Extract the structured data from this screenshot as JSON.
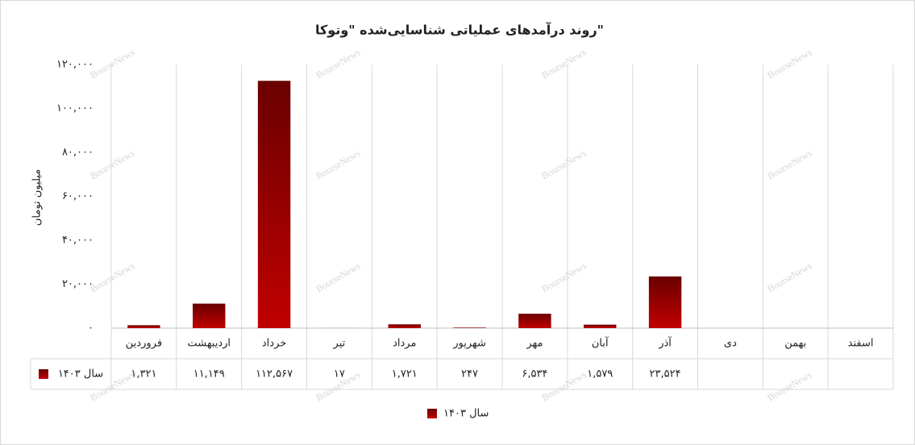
{
  "chart_data": {
    "type": "bar",
    "title": "روند درآمدهای عملیاتی شناسایی‌شده \"وتوکا\"",
    "y_label": "میلیون تومان",
    "watermark": "BourseNews",
    "categories": [
      "فروردین",
      "اردیبهشت",
      "خرداد",
      "تیر",
      "مرداد",
      "شهریور",
      "مهر",
      "آبان",
      "آذر",
      "دی",
      "بهمن",
      "اسفند"
    ],
    "series": [
      {
        "name": "سال ۱۴۰۳",
        "color": "#c00000",
        "values": [
          1321,
          11149,
          112567,
          17,
          1721,
          247,
          6534,
          1579,
          23524,
          null,
          null,
          null
        ],
        "value_labels": [
          "۱,۳۲۱",
          "۱۱,۱۴۹",
          "۱۱۲,۵۶۷",
          "۱۷",
          "۱,۷۲۱",
          "۲۴۷",
          "۶,۵۳۴",
          "۱,۵۷۹",
          "۲۳,۵۲۴",
          null,
          null,
          null
        ]
      }
    ],
    "ylim": [
      0,
      120000
    ],
    "yticks": [
      {
        "value": 0,
        "label": "۰"
      },
      {
        "value": 20000,
        "label": "۲۰,۰۰۰"
      },
      {
        "value": 40000,
        "label": "۴۰,۰۰۰"
      },
      {
        "value": 60000,
        "label": "۶۰,۰۰۰"
      },
      {
        "value": 80000,
        "label": "۸۰,۰۰۰"
      },
      {
        "value": 100000,
        "label": "۱۰۰,۰۰۰"
      },
      {
        "value": 120000,
        "label": "۱۲۰,۰۰۰"
      }
    ],
    "grid": true,
    "data_table": true,
    "legend": "bottom"
  }
}
